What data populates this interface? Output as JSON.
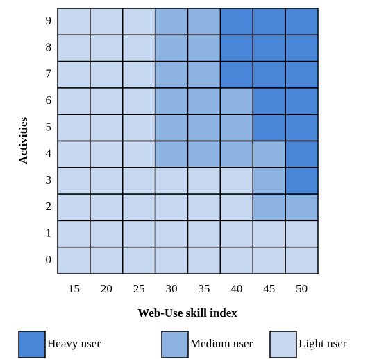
{
  "chart_data": {
    "type": "heatmap",
    "x_label": "Web-Use skill index",
    "y_label": "Activities",
    "categories": [
      15,
      20,
      25,
      30,
      35,
      40,
      45,
      50
    ],
    "y_categories": [
      0,
      1,
      2,
      3,
      4,
      5,
      6,
      7,
      8,
      9
    ],
    "series": [
      {
        "name": "Heavy user",
        "color": "#4a86d8",
        "x": [
          40,
          45,
          50,
          40,
          45,
          50,
          40,
          45,
          50,
          45,
          50,
          45,
          50,
          50,
          50
        ],
        "y": [
          9,
          9,
          9,
          8,
          8,
          8,
          7,
          7,
          7,
          6,
          6,
          5,
          5,
          4,
          3
        ]
      },
      {
        "name": "Medium user",
        "color": "#8db3e2",
        "x": [
          30,
          35,
          30,
          35,
          30,
          35,
          30,
          35,
          40,
          30,
          35,
          40,
          30,
          35,
          40,
          45,
          45,
          45,
          50
        ],
        "y": [
          9,
          9,
          8,
          8,
          7,
          7,
          6,
          6,
          6,
          5,
          5,
          5,
          4,
          4,
          4,
          4,
          3,
          2,
          2
        ]
      },
      {
        "name": "Light user",
        "color": "#c6d9f1",
        "x": [
          15,
          20,
          25,
          15,
          20,
          25,
          15,
          20,
          25,
          15,
          20,
          25,
          15,
          20,
          25,
          15,
          20,
          25,
          15,
          20,
          25,
          30,
          35,
          40,
          15,
          20,
          25,
          30,
          35,
          40,
          15,
          20,
          25,
          30,
          35,
          40,
          45,
          50,
          15,
          20,
          25,
          30,
          35,
          40,
          45,
          50
        ],
        "y": [
          9,
          9,
          9,
          8,
          8,
          8,
          7,
          7,
          7,
          6,
          6,
          6,
          5,
          5,
          5,
          4,
          4,
          4,
          3,
          3,
          3,
          3,
          3,
          3,
          2,
          2,
          2,
          2,
          2,
          2,
          1,
          1,
          1,
          1,
          1,
          1,
          1,
          1,
          0,
          0,
          0,
          0,
          0,
          0,
          0,
          0
        ]
      }
    ]
  }
}
